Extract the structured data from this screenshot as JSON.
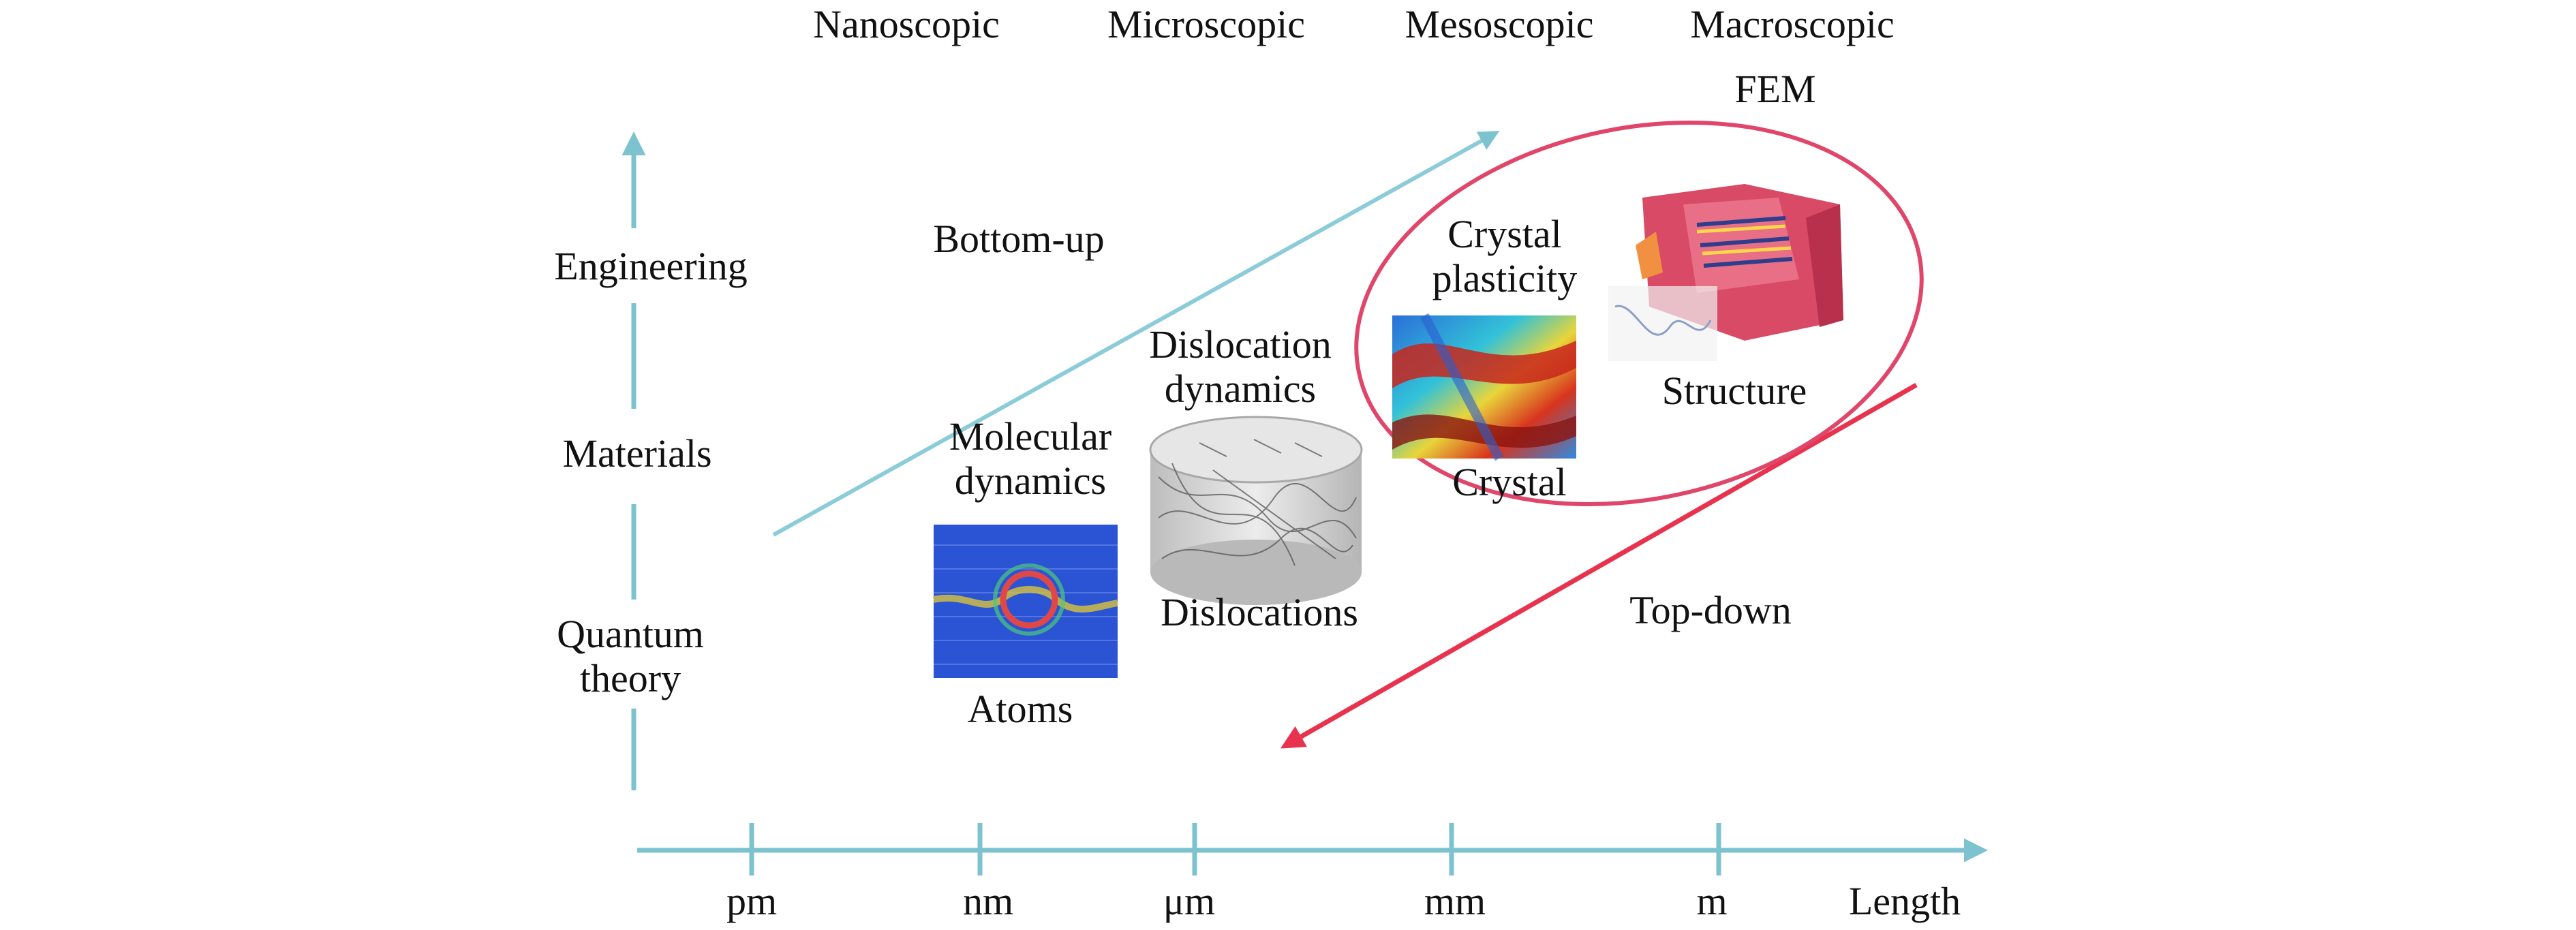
{
  "scale_headers": [
    "Nanoscopic",
    "Microscopic",
    "Mesoscopic",
    "Macroscopic"
  ],
  "fem_label": "FEM",
  "y_axis_levels": {
    "engineering": "Engineering",
    "materials": "Materials",
    "quantum_line1": "Quantum",
    "quantum_line2": "theory"
  },
  "x_axis": {
    "ticks": [
      "pm",
      "nm",
      "μm",
      "mm",
      "m"
    ],
    "label": "Length"
  },
  "approaches": {
    "bottom_up": "Bottom-up",
    "top_down": "Top-down"
  },
  "methods": {
    "md_line1": "Molecular",
    "md_line2": "dynamics",
    "dd_line1": "Dislocation",
    "dd_line2": "dynamics",
    "cp_line1": "Crystal",
    "cp_line2": "plasticity"
  },
  "entities": {
    "atoms": "Atoms",
    "dislocations": "Dislocations",
    "crystal": "Crystal",
    "structure": "Structure"
  },
  "colors": {
    "axis": "#7cc3cf",
    "bottom_up_arrow": "#8cccd8",
    "top_down_arrow": "#e8324e",
    "ellipse": "#e0466a"
  }
}
